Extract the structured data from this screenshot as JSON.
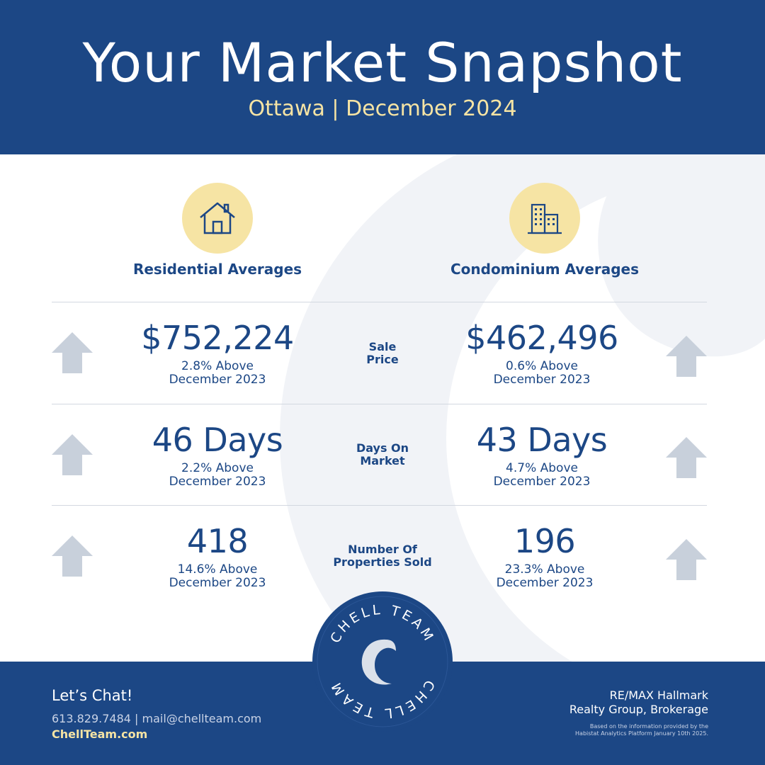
{
  "header": {
    "title": "Your Market Snapshot",
    "subtitle": "Ottawa | December 2024"
  },
  "columns": {
    "residential": {
      "title": "Residential Averages",
      "icon": "house-icon"
    },
    "condo": {
      "title": "Condominium Averages",
      "icon": "building-icon"
    }
  },
  "rows": [
    {
      "metric_line1": "Sale",
      "metric_line2": "Price",
      "residential": {
        "value": "$752,224",
        "change_line1": "2.8% Above",
        "change_line2": "December 2023",
        "trend": "up"
      },
      "condo": {
        "value": "$462,496",
        "change_line1": "0.6% Above",
        "change_line2": "December 2023",
        "trend": "up"
      }
    },
    {
      "metric_line1": "Days On",
      "metric_line2": "Market",
      "residential": {
        "value": "46 Days",
        "change_line1": "2.2% Above",
        "change_line2": "December 2023",
        "trend": "up"
      },
      "condo": {
        "value": "43 Days",
        "change_line1": "4.7% Above",
        "change_line2": "December 2023",
        "trend": "up"
      }
    },
    {
      "metric_line1": "Number Of",
      "metric_line2": "Properties Sold",
      "residential": {
        "value": "418",
        "change_line1": "14.6% Above",
        "change_line2": "December 2023",
        "trend": "up"
      },
      "condo": {
        "value": "196",
        "change_line1": "23.3% Above",
        "change_line2": "December 2023",
        "trend": "up"
      }
    }
  ],
  "footer": {
    "lets_chat": "Let’s Chat!",
    "contact": "613.829.7484 | mail@chellteam.com",
    "website": "ChellTeam.com",
    "brokerage_line1": "RE/MAX Hallmark",
    "brokerage_line2": "Realty Group, Brokerage",
    "disclaimer_line1": "Based on the information provided by the",
    "disclaimer_line2": "Habistat Analytics Platform January 10th 2025."
  },
  "logo": {
    "ring_text": "CHELL TEAM"
  },
  "colors": {
    "navy": "#1c4785",
    "gold": "#f6e4a4",
    "arrow_gray": "#c8d0db",
    "watermark": "#f1f3f7"
  }
}
